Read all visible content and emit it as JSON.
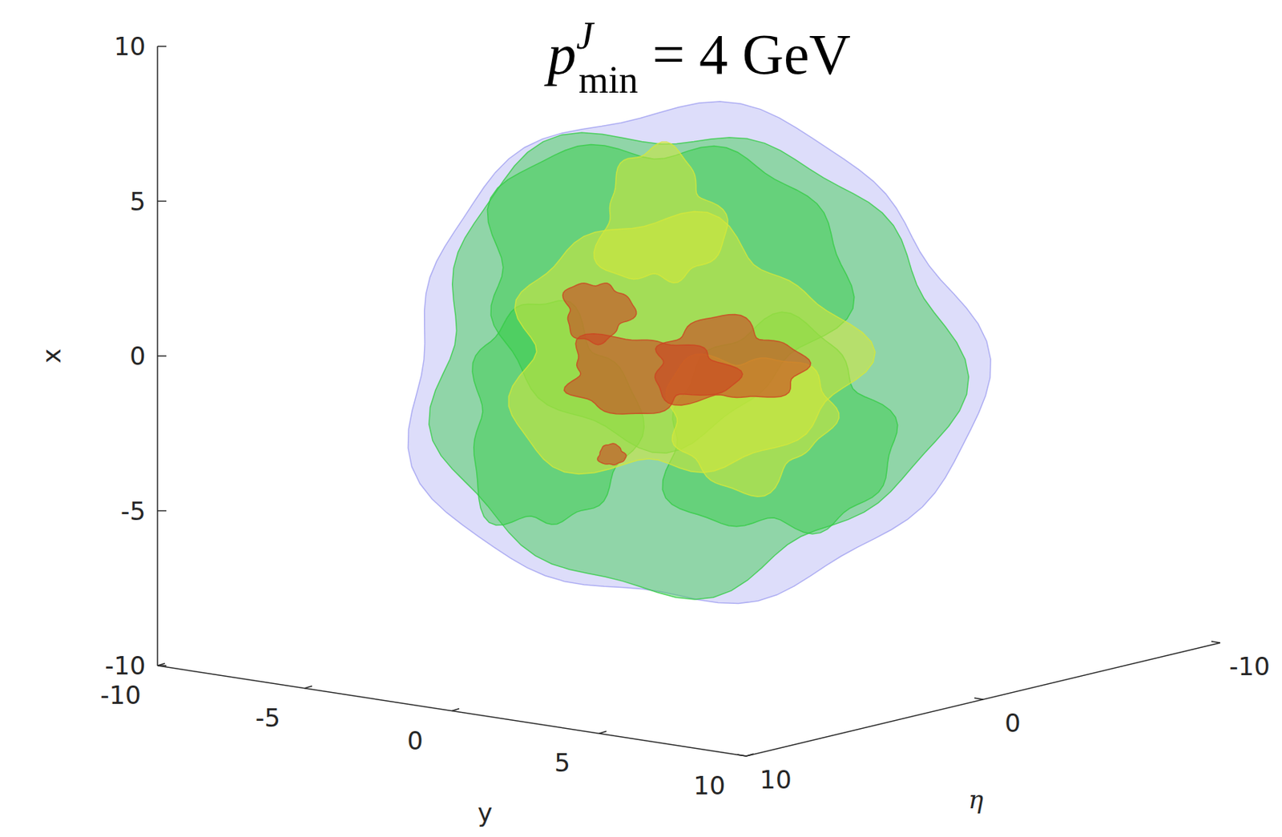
{
  "chart_data": {
    "type": "isosurface",
    "title": {
      "base": "p",
      "sup": "J",
      "sub": "min",
      "rest": "= 4 GeV"
    },
    "xlabel": "x",
    "ylabel": "y",
    "zlabel": "η",
    "xlim": [
      -10,
      10
    ],
    "xticks": [
      -10,
      -5,
      0,
      5,
      10
    ],
    "ylim": [
      -10,
      10
    ],
    "yticks": [
      -10,
      -5,
      0,
      5,
      10
    ],
    "zlim": [
      -10,
      10
    ],
    "zticks": [
      -10,
      0,
      10
    ],
    "colors": [
      "#9f9ff0",
      "#33cc44",
      "#d6e83a",
      "#cc4422"
    ]
  }
}
